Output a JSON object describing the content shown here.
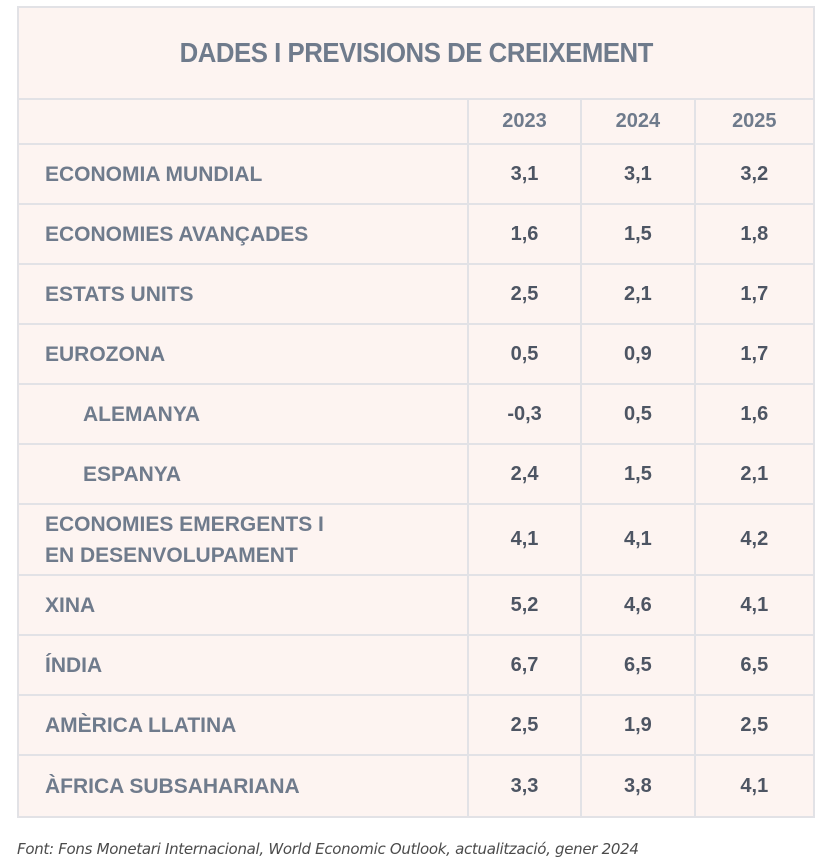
{
  "table": {
    "title": "DADES I PREVISIONS DE CREIXEMENT",
    "years": [
      "2023",
      "2024",
      "2025"
    ],
    "rows": [
      {
        "label": "ECONOMIA MUNDIAL",
        "values": [
          "3,1",
          "3,1",
          "3,2"
        ]
      },
      {
        "label": "ECONOMIES AVANÇADES",
        "values": [
          "1,6",
          "1,5",
          "1,8"
        ]
      },
      {
        "label": "ESTATS UNITS",
        "values": [
          "2,5",
          "2,1",
          "1,7"
        ]
      },
      {
        "label": "EUROZONA",
        "values": [
          "0,5",
          "0,9",
          "1,7"
        ]
      },
      {
        "label": "ALEMANYA",
        "values": [
          "-0,3",
          "0,5",
          "1,6"
        ]
      },
      {
        "label": "ESPANYA",
        "values": [
          "2,4",
          "1,5",
          "2,1"
        ]
      },
      {
        "label_line1": "ECONOMIES EMERGENTS I",
        "label_line2": "EN DESENVOLUPAMENT",
        "values": [
          "4,1",
          "4,1",
          "4,2"
        ]
      },
      {
        "label": "XINA",
        "values": [
          "5,2",
          "4,6",
          "4,1"
        ]
      },
      {
        "label": "ÍNDIA",
        "values": [
          "6,7",
          "6,5",
          "6,5"
        ]
      },
      {
        "label": "AMÈRICA LLATINA",
        "values": [
          "2,5",
          "1,9",
          "2,5"
        ]
      },
      {
        "label": "ÀFRICA SUBSAHARIANA",
        "values": [
          "3,3",
          "3,8",
          "4,1"
        ]
      }
    ]
  },
  "footer": {
    "source": "Font: Fons Monetari Internacional, World Economic Outlook, actualització, gener 2024"
  }
}
